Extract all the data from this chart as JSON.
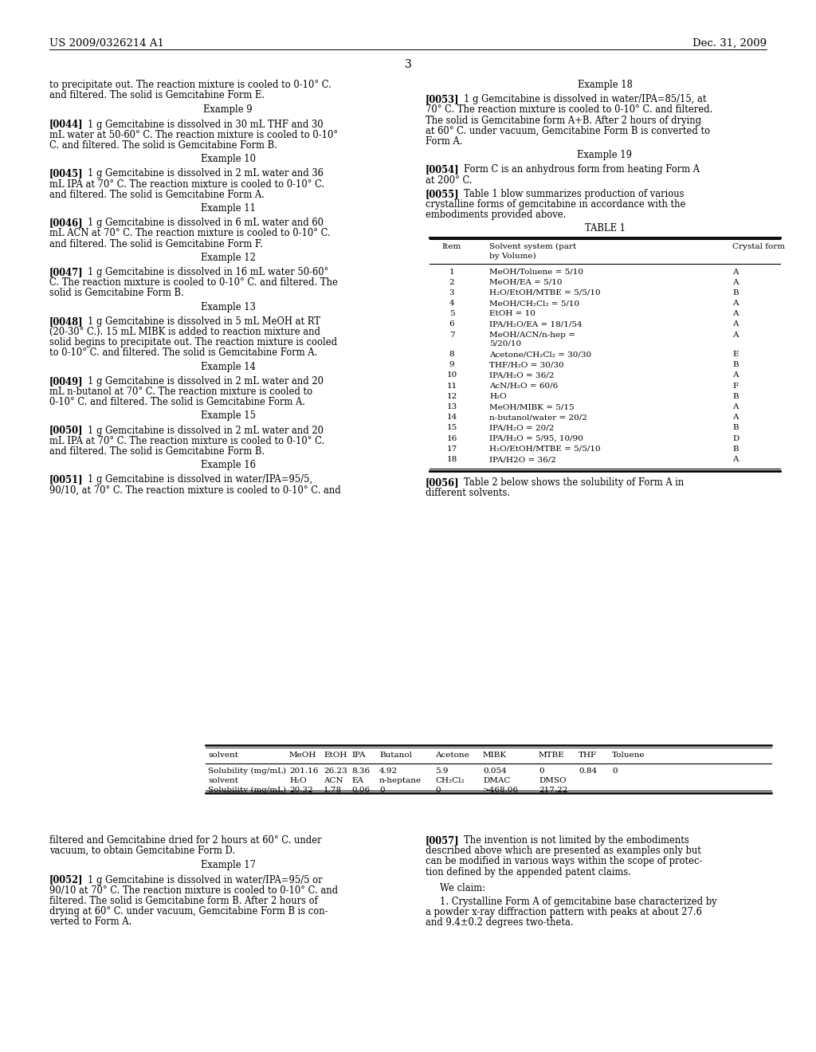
{
  "bg_color": "#ffffff",
  "header_left": "US 2009/0326214 A1",
  "header_right": "Dec. 31, 2009",
  "page_number": "3",
  "table1_rows": [
    [
      "1",
      "MeOH/Toluene = 5/10",
      "A"
    ],
    [
      "2",
      "MeOH/EA = 5/10",
      "A"
    ],
    [
      "3",
      "H₂O/EtOH/MTBE = 5/5/10",
      "B"
    ],
    [
      "4",
      "MeOH/CH₂Cl₂ = 5/10",
      "A"
    ],
    [
      "5",
      "EtOH = 10",
      "A"
    ],
    [
      "6",
      "IPA/H₂O/EA = 18/1/54",
      "A"
    ],
    [
      "7",
      "MeOH/ACN/n-hep =\n5/20/10",
      "A"
    ],
    [
      "8",
      "Acetone/CH₂Cl₂ = 30/30",
      "E"
    ],
    [
      "9",
      "THF/H₂O = 30/30",
      "B"
    ],
    [
      "10",
      "IPA/H₂O = 36/2",
      "A"
    ],
    [
      "11",
      "AcN/H₂O = 60/6",
      "F"
    ],
    [
      "12",
      "H₂O",
      "B"
    ],
    [
      "13",
      "MeOH/MIBK = 5/15",
      "A"
    ],
    [
      "14",
      "n-butanol/water = 20/2",
      "A"
    ],
    [
      "15",
      "IPA/H₂O = 20/2",
      "B"
    ],
    [
      "16",
      "IPA/H₂O = 5/95, 10/90",
      "D"
    ],
    [
      "17",
      "H₂O/EtOH/MTBE = 5/5/10",
      "B"
    ],
    [
      "18",
      "IPA/H2O = 36/2",
      "A"
    ]
  ]
}
